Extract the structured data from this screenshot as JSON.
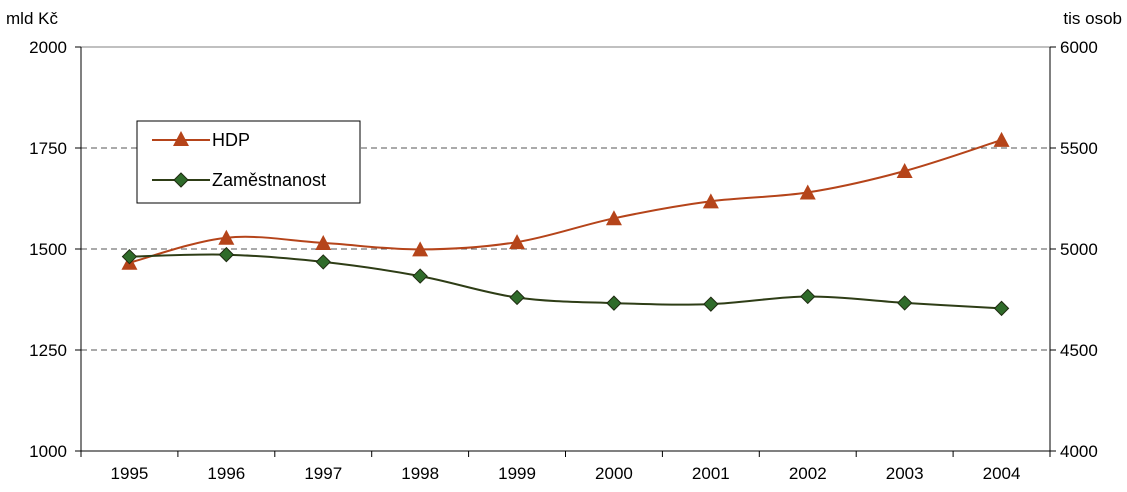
{
  "chart_data": {
    "type": "line",
    "title": "",
    "categories": [
      "1995",
      "1996",
      "1997",
      "1998",
      "1999",
      "2000",
      "2001",
      "2002",
      "2003",
      "2004"
    ],
    "left_axis": {
      "label": "mld Kč",
      "range": [
        1000,
        2000
      ],
      "ticks": [
        "1000",
        "1250",
        "1500",
        "1750",
        "2000"
      ]
    },
    "right_axis": {
      "label": "tis osob",
      "range": [
        4000,
        6000
      ],
      "ticks": [
        "4000",
        "4500",
        "5000",
        "5500",
        "6000"
      ]
    },
    "grid": "horizontal dashed",
    "legend_position": "top-left",
    "series": [
      {
        "name": "HDP",
        "axis": "left",
        "marker": "triangle",
        "color": "#b5441a",
        "values": [
          1466,
          1528,
          1515,
          1499,
          1517,
          1576,
          1618,
          1640,
          1693,
          1770
        ]
      },
      {
        "name": "Zaměstnanost",
        "axis": "right",
        "marker": "diamond",
        "color": "#2e3d16",
        "marker_color": "#2f6b2a",
        "values": [
          4962,
          4972,
          4936,
          4866,
          4760,
          4732,
          4727,
          4765,
          4733,
          4706
        ]
      }
    ]
  }
}
